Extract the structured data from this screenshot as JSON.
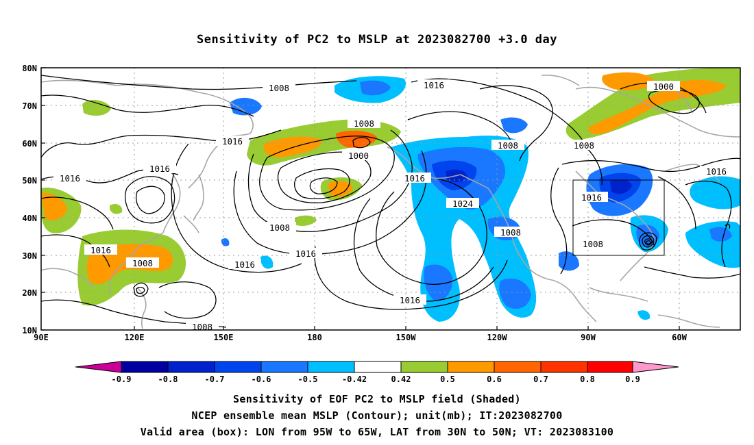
{
  "title": "Sensitivity of PC2 to MSLP at 2023082700 +3.0 day",
  "axes": {
    "lat_ticks": [
      "80N",
      "70N",
      "60N",
      "50N",
      "40N",
      "30N",
      "20N",
      "10N"
    ],
    "lon_ticks": [
      "90E",
      "120E",
      "150E",
      "180",
      "150W",
      "120W",
      "90W",
      "60W"
    ]
  },
  "contour_labels": [
    "1008",
    "1016",
    "1000",
    "1008",
    "1016",
    "1016",
    "1008",
    "1016",
    "1016",
    "1000",
    "1008",
    "1016",
    "1024",
    "1016",
    "1008",
    "1016",
    "1016",
    "1008",
    "1008",
    "1016",
    "1008",
    "1016",
    "1008"
  ],
  "colorbar": {
    "labels": [
      "-0.9",
      "-0.8",
      "-0.7",
      "-0.6",
      "-0.5",
      "-0.42",
      "0.42",
      "0.5",
      "0.6",
      "0.7",
      "0.8",
      "0.9"
    ],
    "colors": [
      "#cc0099",
      "#0000a0",
      "#0022cc",
      "#0044ee",
      "#1a77ff",
      "#00bfff",
      "#ffffff",
      "#99cc33",
      "#ff9900",
      "#ff6600",
      "#ff3300",
      "#ff0000",
      "#ff99cc"
    ]
  },
  "valid_box": {
    "lon_from": "95W",
    "lon_to": "65W",
    "lat_from": "30N",
    "lat_to": "50N"
  },
  "footer": {
    "line1": "Sensitivity of EOF PC2 to MSLP field (Shaded)",
    "line2": "NCEP ensemble mean MSLP (Contour); unit(mb); IT:2023082700",
    "line3": "Valid area (box): LON from 95W to 65W, LAT from 30N to 50N; VT: 2023083100"
  }
}
